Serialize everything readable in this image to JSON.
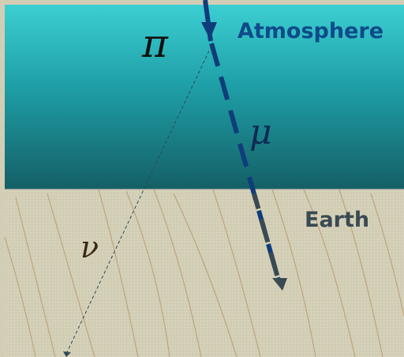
{
  "regions": {
    "atmosphere": {
      "label": "Atmosphere",
      "color": "#1f9aa2",
      "label_color": "#0f4a8a"
    },
    "earth": {
      "label": "Earth",
      "color": "#d2ceb6",
      "label_color": "#3a4a52"
    }
  },
  "particles": {
    "pion": {
      "symbol": "π"
    },
    "muon": {
      "symbol": "μ",
      "color": "#0f3d7a"
    },
    "neutrino": {
      "symbol": "ν"
    }
  }
}
